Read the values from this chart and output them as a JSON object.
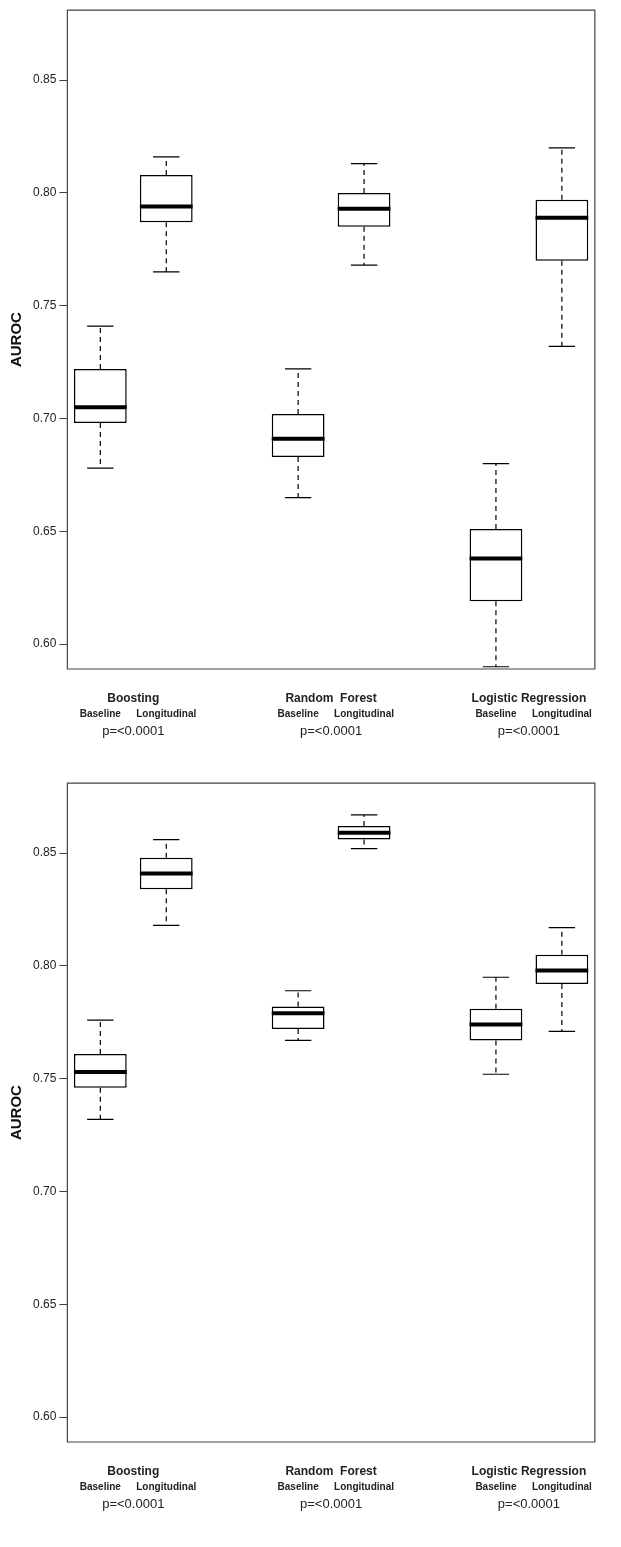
{
  "chart_data": [
    {
      "type": "box",
      "ylabel": "AUROC",
      "categories": [
        "Baseline",
        "Longitudinal",
        null,
        "Baseline",
        "Longitudinal",
        null,
        "Baseline",
        "Longitudinal"
      ],
      "boxes": [
        {
          "low": 0.678,
          "q1": 0.698,
          "median": 0.705,
          "q3": 0.722,
          "high": 0.741
        },
        {
          "low": 0.765,
          "q1": 0.787,
          "median": 0.794,
          "q3": 0.808,
          "high": 0.816
        },
        null,
        {
          "low": 0.665,
          "q1": 0.683,
          "median": 0.691,
          "q3": 0.702,
          "high": 0.722
        },
        {
          "low": 0.768,
          "q1": 0.785,
          "median": 0.793,
          "q3": 0.8,
          "high": 0.813
        },
        null,
        {
          "low": 0.59,
          "q1": 0.619,
          "median": 0.638,
          "q3": 0.651,
          "high": 0.68
        },
        {
          "low": 0.732,
          "q1": 0.77,
          "median": 0.789,
          "q3": 0.797,
          "high": 0.82
        }
      ],
      "ylim": [
        0.589,
        0.881
      ],
      "yticks": [
        {
          "value": 0.6,
          "label": "0.60"
        },
        {
          "value": 0.65,
          "label": "0.65"
        },
        {
          "value": 0.7,
          "label": "0.70"
        },
        {
          "value": 0.75,
          "label": "0.75"
        },
        {
          "value": 0.8,
          "label": "0.80"
        },
        {
          "value": 0.85,
          "label": "0.85"
        }
      ],
      "annotations": [
        "Boosting",
        "Random  Forest",
        "Logistic Regression",
        "p=<0.0001",
        "p=<0.0001",
        "p=<0.0001"
      ]
    },
    {
      "type": "box",
      "ylabel": "AUROC",
      "categories": [
        "Baseline",
        "Longitudinal",
        null,
        "Baseline",
        "Longitudinal",
        null,
        "Baseline",
        "Longitudinal"
      ],
      "boxes": [
        {
          "low": 0.732,
          "q1": 0.746,
          "median": 0.753,
          "q3": 0.761,
          "high": 0.776
        },
        {
          "low": 0.818,
          "q1": 0.834,
          "median": 0.841,
          "q3": 0.848,
          "high": 0.856
        },
        null,
        {
          "low": 0.767,
          "q1": 0.772,
          "median": 0.779,
          "q3": 0.782,
          "high": 0.789
        },
        {
          "low": 0.852,
          "q1": 0.856,
          "median": 0.859,
          "q3": 0.862,
          "high": 0.867
        },
        null,
        {
          "low": 0.752,
          "q1": 0.767,
          "median": 0.774,
          "q3": 0.781,
          "high": 0.795
        },
        {
          "low": 0.771,
          "q1": 0.792,
          "median": 0.798,
          "q3": 0.805,
          "high": 0.817
        }
      ],
      "ylim": [
        0.589,
        0.881
      ],
      "yticks": [
        {
          "value": 0.6,
          "label": "0.60"
        },
        {
          "value": 0.65,
          "label": "0.65"
        },
        {
          "value": 0.7,
          "label": "0.70"
        },
        {
          "value": 0.75,
          "label": "0.75"
        },
        {
          "value": 0.8,
          "label": "0.80"
        },
        {
          "value": 0.85,
          "label": "0.85"
        }
      ],
      "annotations": [
        "Boosting",
        "Random  Forest",
        "Logistic Regression",
        "p=<0.0001",
        "p=<0.0001",
        "p=<0.0001"
      ]
    }
  ]
}
